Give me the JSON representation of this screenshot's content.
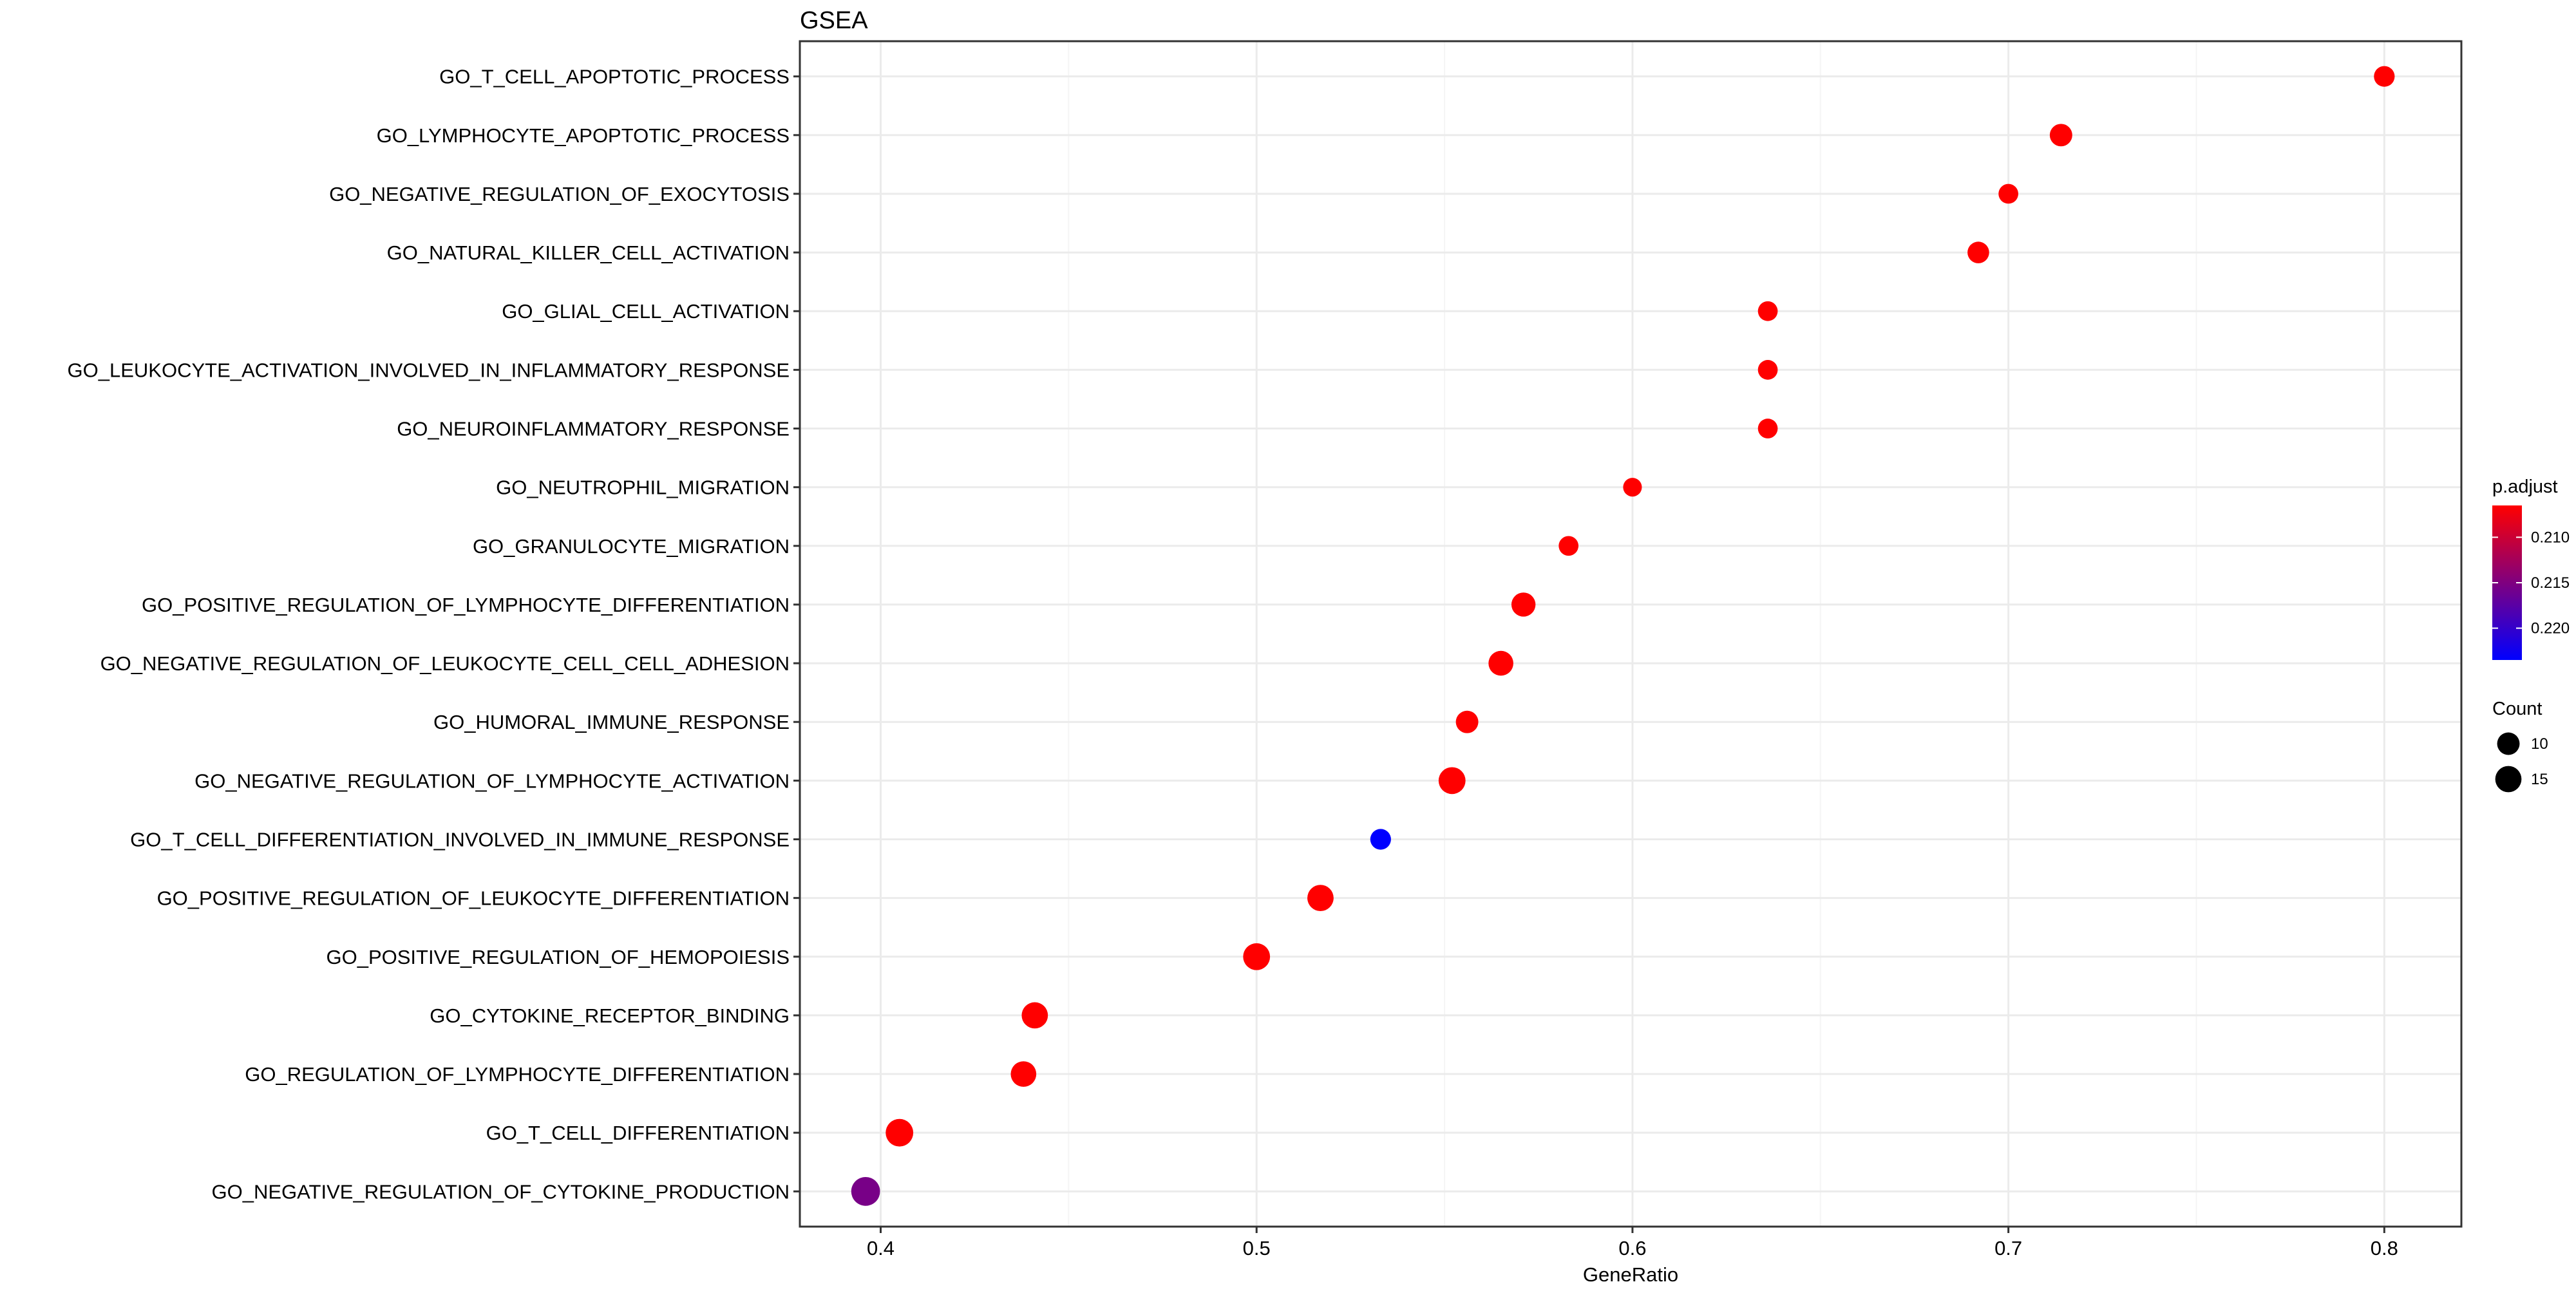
{
  "chart_data": {
    "type": "scatter",
    "title": "GSEA",
    "xlabel": "GeneRatio",
    "ylabel": "",
    "xlim": [
      0.3785,
      0.8205
    ],
    "x_ticks": [
      0.4,
      0.5,
      0.6,
      0.7,
      0.8
    ],
    "x_tick_labels": [
      "0.4",
      "0.5",
      "0.6",
      "0.7",
      "0.8"
    ],
    "grid": true,
    "categories": [
      "GO_T_CELL_APOPTOTIC_PROCESS",
      "GO_LYMPHOCYTE_APOPTOTIC_PROCESS",
      "GO_NEGATIVE_REGULATION_OF_EXOCYTOSIS",
      "GO_NATURAL_KILLER_CELL_ACTIVATION",
      "GO_GLIAL_CELL_ACTIVATION",
      "GO_LEUKOCYTE_ACTIVATION_INVOLVED_IN_INFLAMMATORY_RESPONSE",
      "GO_NEUROINFLAMMATORY_RESPONSE",
      "GO_NEUTROPHIL_MIGRATION",
      "GO_GRANULOCYTE_MIGRATION",
      "GO_POSITIVE_REGULATION_OF_LYMPHOCYTE_DIFFERENTIATION",
      "GO_NEGATIVE_REGULATION_OF_LEUKOCYTE_CELL_CELL_ADHESION",
      "GO_HUMORAL_IMMUNE_RESPONSE",
      "GO_NEGATIVE_REGULATION_OF_LYMPHOCYTE_ACTIVATION",
      "GO_T_CELL_DIFFERENTIATION_INVOLVED_IN_IMMUNE_RESPONSE",
      "GO_POSITIVE_REGULATION_OF_LEUKOCYTE_DIFFERENTIATION",
      "GO_POSITIVE_REGULATION_OF_HEMOPOIESIS",
      "GO_CYTOKINE_RECEPTOR_BINDING",
      "GO_REGULATION_OF_LYMPHOCYTE_DIFFERENTIATION",
      "GO_T_CELL_DIFFERENTIATION",
      "GO_NEGATIVE_REGULATION_OF_CYTOKINE_PRODUCTION"
    ],
    "points": [
      {
        "term": "GO_T_CELL_APOPTOTIC_PROCESS",
        "gene_ratio": 0.8,
        "count": 8,
        "p_adjust": 0.2065
      },
      {
        "term": "GO_LYMPHOCYTE_APOPTOTIC_PROCESS",
        "gene_ratio": 0.714,
        "count": 10,
        "p_adjust": 0.2065
      },
      {
        "term": "GO_NEGATIVE_REGULATION_OF_EXOCYTOSIS",
        "gene_ratio": 0.7,
        "count": 7,
        "p_adjust": 0.2065
      },
      {
        "term": "GO_NATURAL_KILLER_CELL_ACTIVATION",
        "gene_ratio": 0.692,
        "count": 9,
        "p_adjust": 0.2065
      },
      {
        "term": "GO_GLIAL_CELL_ACTIVATION",
        "gene_ratio": 0.636,
        "count": 7,
        "p_adjust": 0.2065
      },
      {
        "term": "GO_LEUKOCYTE_ACTIVATION_INVOLVED_IN_INFLAMMATORY_RESPONSE",
        "gene_ratio": 0.636,
        "count": 7,
        "p_adjust": 0.2065
      },
      {
        "term": "GO_NEUROINFLAMMATORY_RESPONSE",
        "gene_ratio": 0.636,
        "count": 7,
        "p_adjust": 0.2065
      },
      {
        "term": "GO_NEUTROPHIL_MIGRATION",
        "gene_ratio": 0.6,
        "count": 6,
        "p_adjust": 0.2065
      },
      {
        "term": "GO_GRANULOCYTE_MIGRATION",
        "gene_ratio": 0.583,
        "count": 7,
        "p_adjust": 0.2065
      },
      {
        "term": "GO_POSITIVE_REGULATION_OF_LYMPHOCYTE_DIFFERENTIATION",
        "gene_ratio": 0.571,
        "count": 12,
        "p_adjust": 0.2065
      },
      {
        "term": "GO_NEGATIVE_REGULATION_OF_LEUKOCYTE_CELL_CELL_ADHESION",
        "gene_ratio": 0.565,
        "count": 13,
        "p_adjust": 0.2065
      },
      {
        "term": "GO_HUMORAL_IMMUNE_RESPONSE",
        "gene_ratio": 0.556,
        "count": 10,
        "p_adjust": 0.2065
      },
      {
        "term": "GO_NEGATIVE_REGULATION_OF_LYMPHOCYTE_ACTIVATION",
        "gene_ratio": 0.552,
        "count": 16,
        "p_adjust": 0.2065
      },
      {
        "term": "GO_T_CELL_DIFFERENTIATION_INVOLVED_IN_IMMUNE_RESPONSE",
        "gene_ratio": 0.533,
        "count": 8,
        "p_adjust": 0.2235
      },
      {
        "term": "GO_POSITIVE_REGULATION_OF_LEUKOCYTE_DIFFERENTIATION",
        "gene_ratio": 0.517,
        "count": 15,
        "p_adjust": 0.2065
      },
      {
        "term": "GO_POSITIVE_REGULATION_OF_HEMOPOIESIS",
        "gene_ratio": 0.5,
        "count": 16,
        "p_adjust": 0.2065
      },
      {
        "term": "GO_CYTOKINE_RECEPTOR_BINDING",
        "gene_ratio": 0.441,
        "count": 15,
        "p_adjust": 0.2065
      },
      {
        "term": "GO_REGULATION_OF_LYMPHOCYTE_DIFFERENTIATION",
        "gene_ratio": 0.438,
        "count": 14,
        "p_adjust": 0.2065
      },
      {
        "term": "GO_T_CELL_DIFFERENTIATION",
        "gene_ratio": 0.405,
        "count": 17,
        "p_adjust": 0.2065
      },
      {
        "term": "GO_NEGATIVE_REGULATION_OF_CYTOKINE_PRODUCTION",
        "gene_ratio": 0.396,
        "count": 19,
        "p_adjust": 0.2155
      }
    ],
    "color_legend": {
      "title": "p.adjust",
      "range": [
        0.2065,
        0.2235
      ],
      "low_color": "#ff0000",
      "high_color": "#0000ff",
      "tick_values": [
        0.21,
        0.215,
        0.22
      ],
      "tick_labels": [
        "0.210",
        "0.215",
        "0.220"
      ]
    },
    "size_legend": {
      "title": "Count",
      "entries": [
        {
          "value": 10,
          "label": "10"
        },
        {
          "value": 15,
          "label": "15"
        }
      ]
    },
    "colors": {
      "panel_border": "#333333",
      "grid_major": "#ebebeb",
      "grid_minor": "#f5f5f5",
      "text": "#000000"
    }
  }
}
